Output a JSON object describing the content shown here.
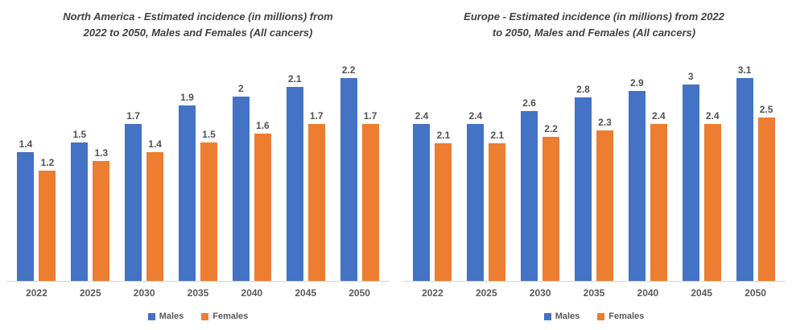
{
  "styles": {
    "males_color": "#4472C4",
    "females_color": "#ED7D31",
    "title_color": "#404040",
    "data_label_color": "#525252",
    "category_label_color": "#595959",
    "axis_line_color": "#D6D6D6",
    "background": "#FFFFFF"
  },
  "chart_data": [
    {
      "type": "bar",
      "title": "North America - Estimated incidence (in millions) from 2022 to 2050, Males and Females (All cancers)",
      "title_lines": [
        "North America - Estimated incidence (in millions) from",
        "2022 to 2050, Males and Females (All cancers)"
      ],
      "categories": [
        "2022",
        "2025",
        "2030",
        "2035",
        "2040",
        "2045",
        "2050"
      ],
      "series": [
        {
          "name": "Males",
          "color": "#4472C4",
          "values": [
            1.4,
            1.5,
            1.7,
            1.9,
            2,
            2.1,
            2.2
          ]
        },
        {
          "name": "Females",
          "color": "#ED7D31",
          "values": [
            1.2,
            1.3,
            1.4,
            1.5,
            1.6,
            1.7,
            1.7
          ]
        }
      ],
      "xlabel": "",
      "ylabel": "",
      "y_axis_visible": false,
      "grid": false,
      "data_labels": true,
      "legend_position": "bottom"
    },
    {
      "type": "bar",
      "title": "Europe - Estimated incidence (in millions) from 2022 to 2050, Males and Females (All cancers)",
      "title_lines": [
        "Europe - Estimated incidence (in millions) from 2022",
        "to 2050, Males and Females (All cancers)"
      ],
      "categories": [
        "2022",
        "2025",
        "2030",
        "2035",
        "2040",
        "2045",
        "2050"
      ],
      "series": [
        {
          "name": "Males",
          "color": "#4472C4",
          "values": [
            2.4,
            2.4,
            2.6,
            2.8,
            2.9,
            3,
            3.1
          ]
        },
        {
          "name": "Females",
          "color": "#ED7D31",
          "values": [
            2.1,
            2.1,
            2.2,
            2.3,
            2.4,
            2.4,
            2.5
          ]
        }
      ],
      "xlabel": "",
      "ylabel": "",
      "y_axis_visible": false,
      "grid": false,
      "data_labels": true,
      "legend_position": "bottom"
    }
  ]
}
